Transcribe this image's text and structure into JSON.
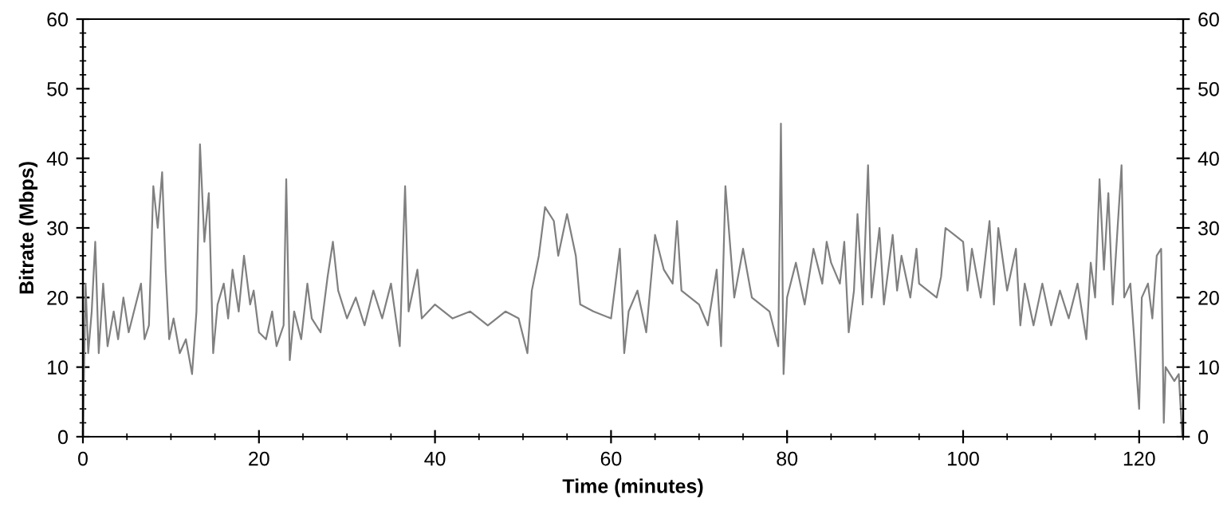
{
  "chart_data": {
    "type": "line",
    "xlabel": "Time (minutes)",
    "ylabel": "Bitrate (Mbps)",
    "xlim": [
      0,
      125
    ],
    "xticks": [
      0,
      20,
      40,
      60,
      80,
      100,
      120
    ],
    "ylim": [
      0,
      60
    ],
    "yticks": [
      0,
      10,
      20,
      30,
      40,
      50,
      60
    ],
    "y2lim": [
      0,
      60
    ],
    "y2ticks": [
      0,
      10,
      20,
      30,
      40,
      50,
      60
    ],
    "grid": false,
    "marker": "none",
    "line_style": "solid",
    "series": [
      {
        "color": "#808080",
        "x": [
          0,
          0.3,
          0.6,
          1,
          1.4,
          1.8,
          2.3,
          2.8,
          3.5,
          4,
          4.6,
          5.2,
          6,
          6.6,
          7,
          7.5,
          8,
          8.5,
          9,
          9.4,
          9.8,
          10.3,
          11,
          11.7,
          12.4,
          12.9,
          13.3,
          13.8,
          14.3,
          14.8,
          15.3,
          16,
          16.5,
          17,
          17.7,
          18.3,
          19,
          19.4,
          20,
          20.8,
          21.5,
          22,
          22.8,
          23.1,
          23.5,
          24,
          24.8,
          25.5,
          26,
          27,
          27.8,
          28.4,
          29,
          30,
          31,
          32,
          33,
          34,
          35,
          36,
          36.6,
          37,
          38,
          38.5,
          40,
          42,
          44,
          46,
          48,
          49.5,
          50.5,
          51,
          51.8,
          52.5,
          53.5,
          54,
          55,
          56,
          56.5,
          58,
          60,
          61,
          61.5,
          62,
          63,
          64,
          65,
          66,
          67,
          67.5,
          68,
          70,
          71,
          72,
          72.5,
          73,
          74,
          75,
          76,
          78,
          79,
          79.3,
          79.6,
          80,
          81,
          82,
          83,
          84,
          84.5,
          85,
          86,
          86.5,
          87,
          87.6,
          88,
          88.6,
          89.2,
          89.6,
          90.5,
          91,
          92,
          92.5,
          93,
          94,
          94.7,
          95,
          96,
          97,
          97.5,
          98,
          99,
          100,
          100.5,
          101,
          102,
          103,
          103.5,
          104,
          105,
          106,
          106.5,
          107,
          108,
          109,
          110,
          111,
          112,
          113,
          114,
          114.5,
          115,
          115.5,
          116,
          116.5,
          117,
          118,
          118.3,
          119,
          120,
          120.3,
          121,
          121.5,
          122,
          122.5,
          122.8,
          123,
          124,
          124.5,
          124.9
        ],
        "values": [
          0,
          22,
          12,
          18,
          28,
          12,
          22,
          13,
          18,
          14,
          20,
          15,
          19,
          22,
          14,
          16,
          36,
          30,
          38,
          24,
          14,
          17,
          12,
          14,
          9,
          18,
          42,
          28,
          35,
          12,
          19,
          22,
          17,
          24,
          18,
          26,
          19,
          21,
          15,
          14,
          18,
          13,
          16,
          37,
          11,
          18,
          14,
          22,
          17,
          15,
          23,
          28,
          21,
          17,
          20,
          16,
          21,
          17,
          22,
          13,
          36,
          18,
          24,
          17,
          19,
          17,
          18,
          16,
          18,
          17,
          12,
          21,
          26,
          33,
          31,
          26,
          32,
          26,
          19,
          18,
          17,
          27,
          12,
          18,
          21,
          15,
          29,
          24,
          22,
          31,
          21,
          19,
          16,
          24,
          13,
          36,
          20,
          27,
          20,
          18,
          13,
          45,
          9,
          20,
          25,
          19,
          27,
          22,
          28,
          25,
          22,
          28,
          15,
          21,
          32,
          19,
          39,
          20,
          30,
          19,
          29,
          21,
          26,
          20,
          27,
          22,
          21,
          20,
          23,
          30,
          29,
          28,
          21,
          27,
          20,
          31,
          19,
          30,
          21,
          27,
          16,
          22,
          16,
          22,
          16,
          21,
          17,
          22,
          14,
          25,
          20,
          37,
          24,
          35,
          19,
          39,
          20,
          22,
          4,
          20,
          22,
          17,
          26,
          27,
          2,
          10,
          8,
          9,
          0
        ]
      }
    ]
  }
}
